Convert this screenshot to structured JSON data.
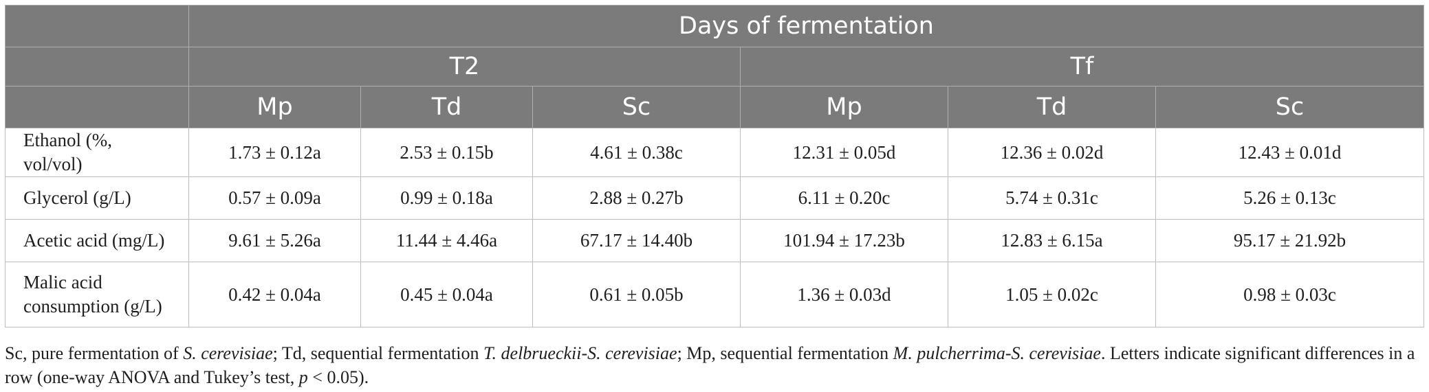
{
  "table": {
    "group_header": "Days of fermentation",
    "time_headers": [
      "T2",
      "Tf"
    ],
    "sub_headers": [
      "Mp",
      "Td",
      "Sc",
      "Mp",
      "Td",
      "Sc"
    ],
    "rows": [
      {
        "label": "Ethanol (%, vol/vol)",
        "values": [
          "1.73 ± 0.12a",
          "2.53 ± 0.15b",
          "4.61 ± 0.38c",
          "12.31 ± 0.05d",
          "12.36 ± 0.02d",
          "12.43 ± 0.01d"
        ]
      },
      {
        "label": "Glycerol (g/L)",
        "values": [
          "0.57 ± 0.09a",
          "0.99 ± 0.18a",
          "2.88 ± 0.27b",
          "6.11 ± 0.20c",
          "5.74 ± 0.31c",
          "5.26 ± 0.13c"
        ]
      },
      {
        "label": "Acetic acid (mg/L)",
        "values": [
          "9.61 ± 5.26a",
          "11.44 ± 4.46a",
          "67.17 ± 14.40b",
          "101.94 ± 17.23b",
          "12.83 ± 6.15a",
          "95.17 ± 21.92b"
        ]
      },
      {
        "label": "Malic acid consumption (g/L)",
        "values": [
          "0.42 ± 0.04a",
          "0.45 ± 0.04a",
          "0.61 ± 0.05b",
          "1.36 ± 0.03d",
          "1.05 ± 0.02c",
          "0.98 ± 0.03c"
        ]
      }
    ]
  },
  "footnote": {
    "p1": "Sc, pure fermentation of ",
    "i1": "S. cerevisiae",
    "p2": "; Td, sequential fermentation ",
    "i2": "T. delbrueckii-S. cerevisiae",
    "p3": "; Mp, sequential fermentation ",
    "i3": "M. pulcherrima-S. cerevisiae",
    "p4": ". Letters indicate significant differences in a row (one-way ANOVA and Tukey’s test, ",
    "i4": "p",
    "p5": " < 0.05)."
  }
}
